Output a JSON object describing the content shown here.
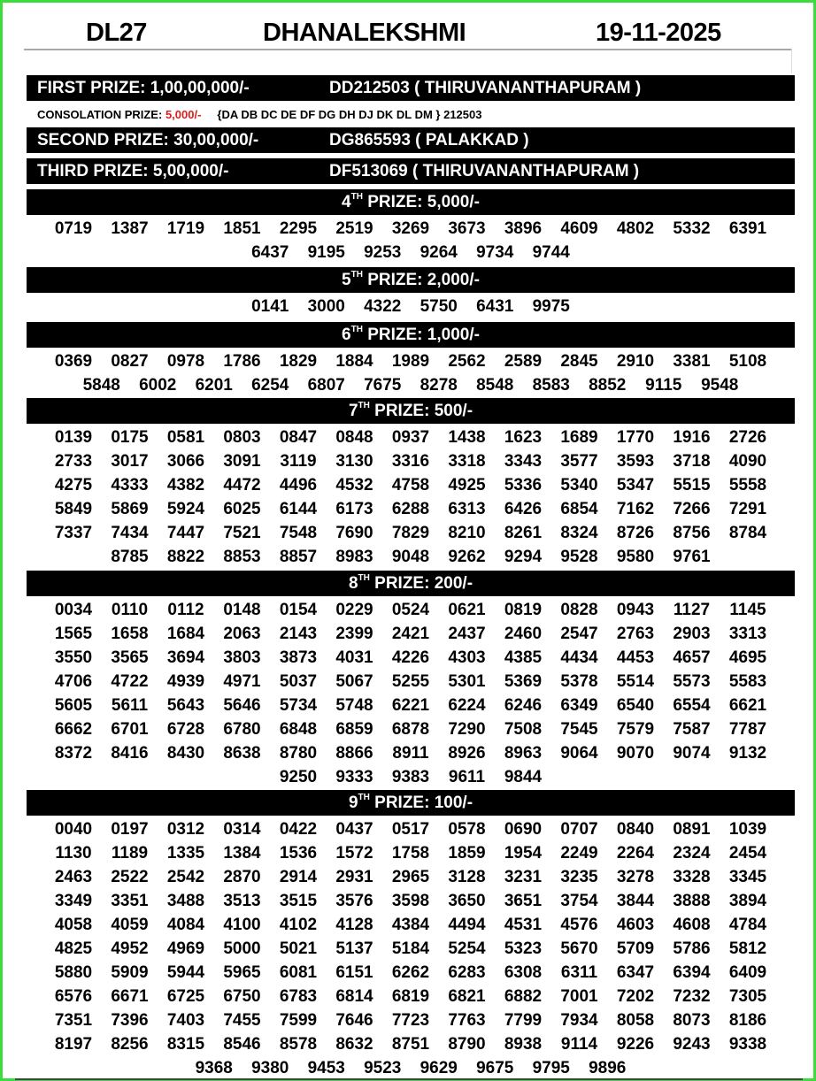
{
  "header": {
    "code": "DL27",
    "name": "DHANALEKSHMI",
    "date": "19-11-2025"
  },
  "first": {
    "label": "FIRST PRIZE: 1,00,00,000/-",
    "ticket": "DD212503 ( THIRUVANANTHAPURAM )"
  },
  "consolation": {
    "label": "CONSOLATION PRIZE: ",
    "amount": "5,000/-",
    "tickets": "{DA DB DC DE DF DG DH DJ DK DL DM } 212503",
    "amount_color": "#d81e1e"
  },
  "second": {
    "label": "SECOND PRIZE: 30,00,000/-",
    "ticket": "DG865593 ( PALAKKAD )"
  },
  "third": {
    "label": "THIRD PRIZE: 5,00,000/-",
    "ticket": "DF513069 ( THIRUVANANTHAPURAM )"
  },
  "prizes": [
    {
      "ordinal": "4",
      "suffix": "TH",
      "label": " PRIZE: 5,000/-",
      "numbers": [
        "0719",
        "1387",
        "1719",
        "1851",
        "2295",
        "2519",
        "3269",
        "3673",
        "3896",
        "4609",
        "4802",
        "5332",
        "6391",
        "6437",
        "9195",
        "9253",
        "9264",
        "9734",
        "9744"
      ]
    },
    {
      "ordinal": "5",
      "suffix": "TH",
      "label": " PRIZE: 2,000/-",
      "numbers": [
        "0141",
        "3000",
        "4322",
        "5750",
        "6431",
        "9975"
      ]
    },
    {
      "ordinal": "6",
      "suffix": "TH",
      "label": " PRIZE: 1,000/-",
      "numbers": [
        "0369",
        "0827",
        "0978",
        "1786",
        "1829",
        "1884",
        "1989",
        "2562",
        "2589",
        "2845",
        "2910",
        "3381",
        "5108",
        "5848",
        "6002",
        "6201",
        "6254",
        "6807",
        "7675",
        "8278",
        "8548",
        "8583",
        "8852",
        "9115",
        "9548"
      ]
    },
    {
      "ordinal": "7",
      "suffix": "TH",
      "label": " PRIZE: 500/-",
      "numbers": [
        "0139",
        "0175",
        "0581",
        "0803",
        "0847",
        "0848",
        "0937",
        "1438",
        "1623",
        "1689",
        "1770",
        "1916",
        "2726",
        "2733",
        "3017",
        "3066",
        "3091",
        "3119",
        "3130",
        "3316",
        "3318",
        "3343",
        "3577",
        "3593",
        "3718",
        "4090",
        "4275",
        "4333",
        "4382",
        "4472",
        "4496",
        "4532",
        "4758",
        "4925",
        "5336",
        "5340",
        "5347",
        "5515",
        "5558",
        "5849",
        "5869",
        "5924",
        "6025",
        "6144",
        "6173",
        "6288",
        "6313",
        "6426",
        "6854",
        "7162",
        "7266",
        "7291",
        "7337",
        "7434",
        "7447",
        "7521",
        "7548",
        "7690",
        "7829",
        "8210",
        "8261",
        "8324",
        "8726",
        "8756",
        "8784",
        "8785",
        "8822",
        "8853",
        "8857",
        "8983",
        "9048",
        "9262",
        "9294",
        "9528",
        "9580",
        "9761"
      ]
    },
    {
      "ordinal": "8",
      "suffix": "TH",
      "label": " PRIZE: 200/-",
      "numbers": [
        "0034",
        "0110",
        "0112",
        "0148",
        "0154",
        "0229",
        "0524",
        "0621",
        "0819",
        "0828",
        "0943",
        "1127",
        "1145",
        "1565",
        "1658",
        "1684",
        "2063",
        "2143",
        "2399",
        "2421",
        "2437",
        "2460",
        "2547",
        "2763",
        "2903",
        "3313",
        "3550",
        "3565",
        "3694",
        "3803",
        "3873",
        "4031",
        "4226",
        "4303",
        "4385",
        "4434",
        "4453",
        "4657",
        "4695",
        "4706",
        "4722",
        "4939",
        "4971",
        "5037",
        "5067",
        "5255",
        "5301",
        "5369",
        "5378",
        "5514",
        "5573",
        "5583",
        "5605",
        "5611",
        "5643",
        "5646",
        "5734",
        "5748",
        "6221",
        "6224",
        "6246",
        "6349",
        "6540",
        "6554",
        "6621",
        "6662",
        "6701",
        "6728",
        "6780",
        "6848",
        "6859",
        "6878",
        "7290",
        "7508",
        "7545",
        "7579",
        "7587",
        "7787",
        "8372",
        "8416",
        "8430",
        "8638",
        "8780",
        "8866",
        "8911",
        "8926",
        "8963",
        "9064",
        "9070",
        "9074",
        "9132",
        "9250",
        "9333",
        "9383",
        "9611",
        "9844"
      ]
    },
    {
      "ordinal": "9",
      "suffix": "TH",
      "label": " PRIZE: 100/-",
      "numbers": [
        "0040",
        "0197",
        "0312",
        "0314",
        "0422",
        "0437",
        "0517",
        "0578",
        "0690",
        "0707",
        "0840",
        "0891",
        "1039",
        "1130",
        "1189",
        "1335",
        "1384",
        "1536",
        "1572",
        "1758",
        "1859",
        "1954",
        "2249",
        "2264",
        "2324",
        "2454",
        "2463",
        "2522",
        "2542",
        "2870",
        "2914",
        "2931",
        "2965",
        "3128",
        "3231",
        "3235",
        "3278",
        "3328",
        "3345",
        "3349",
        "3351",
        "3488",
        "3513",
        "3515",
        "3576",
        "3598",
        "3650",
        "3651",
        "3754",
        "3844",
        "3888",
        "3894",
        "4058",
        "4059",
        "4084",
        "4100",
        "4102",
        "4128",
        "4384",
        "4494",
        "4531",
        "4576",
        "4603",
        "4608",
        "4784",
        "4825",
        "4952",
        "4969",
        "5000",
        "5021",
        "5137",
        "5184",
        "5254",
        "5323",
        "5670",
        "5709",
        "5786",
        "5812",
        "5880",
        "5909",
        "5944",
        "5965",
        "6081",
        "6151",
        "6262",
        "6283",
        "6308",
        "6311",
        "6347",
        "6394",
        "6409",
        "6576",
        "6671",
        "6725",
        "6750",
        "6783",
        "6814",
        "6819",
        "6821",
        "6882",
        "7001",
        "7202",
        "7232",
        "7305",
        "7351",
        "7396",
        "7403",
        "7455",
        "7599",
        "7646",
        "7723",
        "7763",
        "7799",
        "7934",
        "8058",
        "8073",
        "8186",
        "8197",
        "8256",
        "8315",
        "8546",
        "8578",
        "8632",
        "8751",
        "8790",
        "8938",
        "9114",
        "9226",
        "9243",
        "9338",
        "9368",
        "9380",
        "9453",
        "9523",
        "9629",
        "9675",
        "9795",
        "9896"
      ]
    }
  ]
}
